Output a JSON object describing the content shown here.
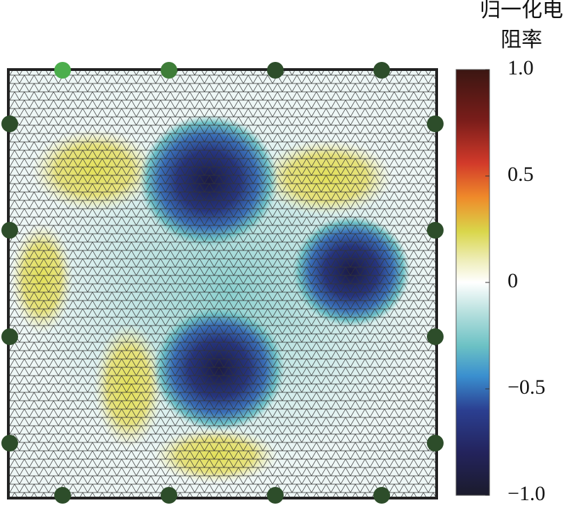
{
  "colorbar": {
    "title_lines": [
      "归一化电",
      "阻率"
    ],
    "clim": [
      -1,
      1
    ],
    "ticks": [
      {
        "value": 1,
        "label": "1.0"
      },
      {
        "value": 0.5,
        "label": "0.5"
      },
      0,
      {
        "value": -0.5,
        "label": "−0.5"
      },
      {
        "value": -1,
        "label": "−1.0"
      }
    ]
  }
}
